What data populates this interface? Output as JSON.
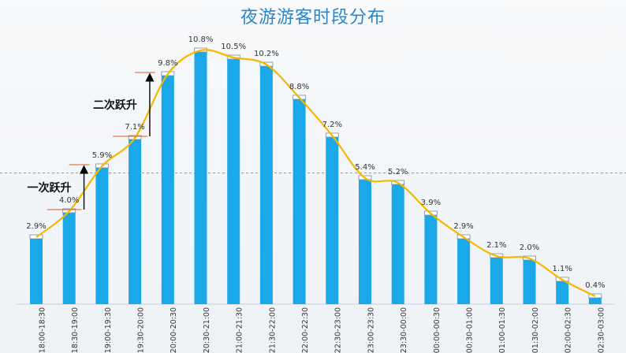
{
  "chart_data": {
    "type": "bar",
    "title": "夜游游客时段分布",
    "categories": [
      "18:00-18:30",
      "18:30-19:00",
      "19:00-19:30",
      "19:30-20:00",
      "20:00-20:30",
      "20:30-21:00",
      "21:00-21:30",
      "21:30-22:00",
      "22:00-22:30",
      "22:30-23:00",
      "23:00-23:30",
      "23:30-00:00",
      "00:00-00:30",
      "00:30-01:00",
      "01:00-01:30",
      "01:30-02:00",
      "02:00-02:30",
      "02:30-03:00"
    ],
    "values": [
      2.9,
      4.0,
      5.9,
      7.1,
      9.8,
      10.8,
      10.5,
      10.2,
      8.8,
      7.2,
      5.4,
      5.2,
      3.9,
      2.9,
      2.1,
      2.0,
      1.1,
      0.4
    ],
    "value_labels": [
      "2.9%",
      "4.0%",
      "5.9%",
      "7.1%",
      "9.8%",
      "10.8%",
      "10.5%",
      "10.2%",
      "8.8%",
      "7.2%",
      "5.4%",
      "5.2%",
      "3.9%",
      "2.9%",
      "2.1%",
      "2.0%",
      "1.1%",
      "0.4%"
    ],
    "xlabel": "",
    "ylabel": "",
    "ylim": [
      0,
      11.2
    ],
    "reference_line": 5.55,
    "trend_line": true,
    "grid": false,
    "colors": {
      "bar": "#1aa8e8",
      "bar_cap": "#ffffff",
      "trend": "#f5b800",
      "jump_marker": "#e05a2a",
      "title": "#2a86c8"
    },
    "annotations": [
      {
        "text": "一次跃升",
        "from_index": 1,
        "to_index": 2
      },
      {
        "text": "二次跃升",
        "from_index": 3,
        "to_index": 4
      }
    ]
  }
}
